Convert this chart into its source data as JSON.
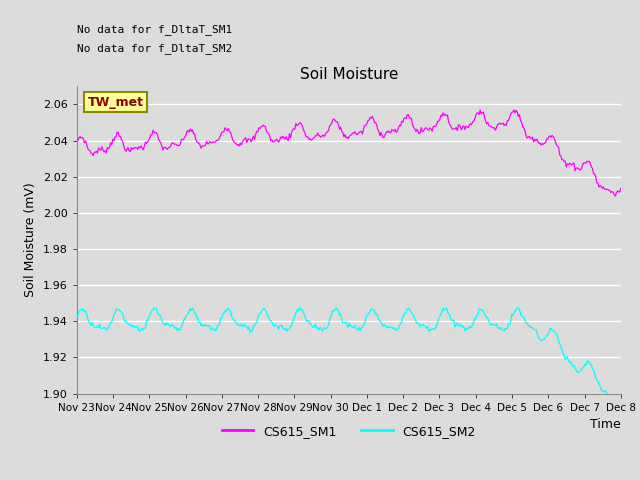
{
  "title": "Soil Moisture",
  "ylabel": "Soil Moisture (mV)",
  "xlabel": "Time",
  "ylim": [
    1.9,
    2.07
  ],
  "yticks": [
    1.9,
    1.92,
    1.94,
    1.96,
    1.98,
    2.0,
    2.02,
    2.04,
    2.06
  ],
  "xtick_labels": [
    "Nov 23",
    "Nov 24",
    "Nov 25",
    "Nov 26",
    "Nov 27",
    "Nov 28",
    "Nov 29",
    "Nov 30",
    "Dec 1",
    "Dec 2",
    "Dec 3",
    "Dec 4",
    "Dec 5",
    "Dec 6",
    "Dec 7",
    "Dec 8"
  ],
  "text_no_data1": "No data for f_DltaT_SM1",
  "text_no_data2": "No data for f_DltaT_SM2",
  "tw_met_label": "TW_met",
  "tw_met_bg": "#ffff99",
  "tw_met_fg": "#8b0000",
  "color_sm1": "#ff00ff",
  "color_sm2": "#00ffff",
  "legend_sm1": "CS615_SM1",
  "legend_sm2": "CS615_SM2",
  "fig_bg": "#dcdcdc",
  "plot_bg": "#dcdcdc",
  "grid_color": "#ffffff",
  "n_points": 500
}
